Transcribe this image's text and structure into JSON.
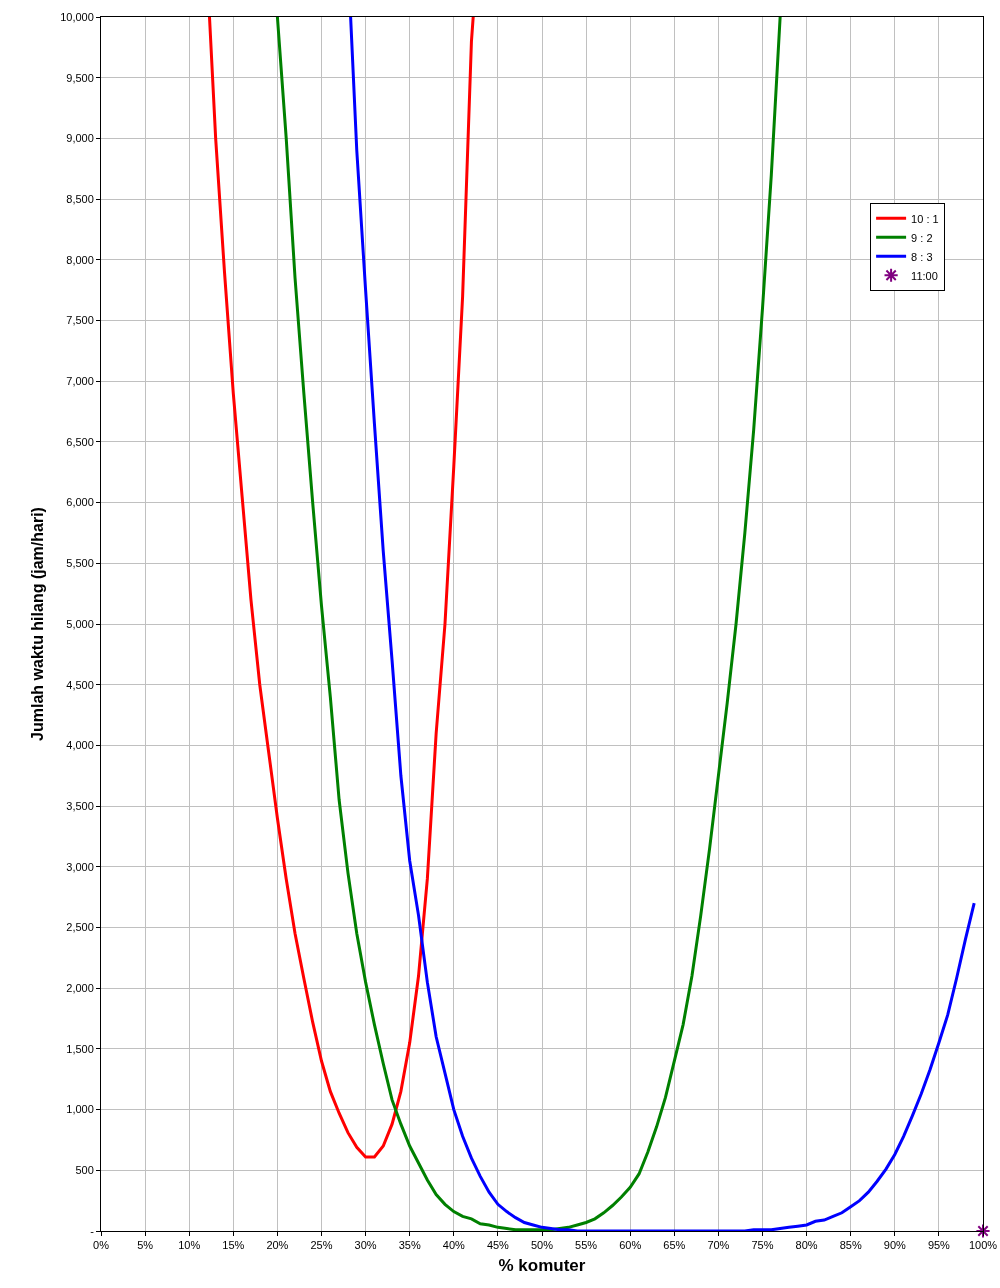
{
  "chart_data": {
    "type": "line",
    "xlabel": "% komuter",
    "ylabel": "Jumlah waktu hilang (jam/hari)",
    "xlim": [
      0,
      100
    ],
    "ylim": [
      0,
      10000
    ],
    "xticks": [
      {
        "value": 0,
        "label": "0%"
      },
      {
        "value": 5,
        "label": "5%"
      },
      {
        "value": 10,
        "label": "10%"
      },
      {
        "value": 15,
        "label": "15%"
      },
      {
        "value": 20,
        "label": "20%"
      },
      {
        "value": 25,
        "label": "25%"
      },
      {
        "value": 30,
        "label": "30%"
      },
      {
        "value": 35,
        "label": "35%"
      },
      {
        "value": 40,
        "label": "40%"
      },
      {
        "value": 45,
        "label": "45%"
      },
      {
        "value": 50,
        "label": "50%"
      },
      {
        "value": 55,
        "label": "55%"
      },
      {
        "value": 60,
        "label": "60%"
      },
      {
        "value": 65,
        "label": "65%"
      },
      {
        "value": 70,
        "label": "70%"
      },
      {
        "value": 75,
        "label": "75%"
      },
      {
        "value": 80,
        "label": "80%"
      },
      {
        "value": 85,
        "label": "85%"
      },
      {
        "value": 90,
        "label": "90%"
      },
      {
        "value": 95,
        "label": "95%"
      },
      {
        "value": 100,
        "label": "100%"
      }
    ],
    "yticks": [
      {
        "value": 0,
        "label": "-"
      },
      500,
      {
        "value": 1000,
        "label": "1,000"
      },
      {
        "value": 1500,
        "label": "1,500"
      },
      {
        "value": 2000,
        "label": "2,000"
      },
      {
        "value": 2500,
        "label": "2,500"
      },
      {
        "value": 3000,
        "label": "3,000"
      },
      {
        "value": 3500,
        "label": "3,500"
      },
      {
        "value": 4000,
        "label": "4,000"
      },
      {
        "value": 4500,
        "label": "4,500"
      },
      {
        "value": 5000,
        "label": "5,000"
      },
      {
        "value": 5500,
        "label": "5,500"
      },
      {
        "value": 6000,
        "label": "6,000"
      },
      {
        "value": 6500,
        "label": "6,500"
      },
      {
        "value": 7000,
        "label": "7,000"
      },
      {
        "value": 7500,
        "label": "7,500"
      },
      {
        "value": 8000,
        "label": "8,000"
      },
      {
        "value": 8500,
        "label": "8,500"
      },
      {
        "value": 9000,
        "label": "9,000"
      },
      {
        "value": 9500,
        "label": "9,500"
      },
      {
        "value": 10000,
        "label": "10,000"
      }
    ],
    "grid": true,
    "legend": "top right",
    "marker": "none",
    "line_style": "solid",
    "series": [
      {
        "name": "10 : 1",
        "color": "#ff0000",
        "x": [
          12.3,
          13,
          14,
          15,
          16,
          17,
          18,
          19,
          20,
          21,
          22,
          23,
          24,
          25,
          26,
          27,
          28,
          29,
          30,
          31,
          32,
          33,
          34,
          35,
          36,
          37,
          38,
          39,
          40,
          41,
          42,
          42.2
        ],
        "values": [
          10000,
          9000,
          7900,
          6900,
          6050,
          5200,
          4500,
          3950,
          3400,
          2900,
          2450,
          2080,
          1720,
          1400,
          1150,
          970,
          810,
          690,
          610,
          610,
          700,
          880,
          1150,
          1550,
          2100,
          2900,
          4100,
          5000,
          6300,
          7700,
          9800,
          10000
        ]
      },
      {
        "name": "9 : 2",
        "color": "#008000",
        "x": [
          20,
          21,
          22,
          23,
          24,
          25,
          26,
          27,
          28,
          29,
          30,
          31,
          32,
          33,
          34,
          35,
          36,
          37,
          38,
          39,
          40,
          41,
          42,
          43,
          44,
          45,
          46,
          47,
          48,
          49,
          50,
          51,
          52,
          53,
          54,
          55,
          56,
          57,
          58,
          59,
          60,
          61,
          62,
          63,
          64,
          65,
          66,
          67,
          68,
          69,
          70,
          71,
          72,
          73,
          74,
          75,
          76,
          77
        ],
        "values": [
          10000,
          9000,
          7850,
          6900,
          6000,
          5150,
          4400,
          3550,
          2950,
          2450,
          2050,
          1700,
          1380,
          1080,
          880,
          700,
          560,
          420,
          300,
          220,
          160,
          120,
          100,
          60,
          50,
          30,
          20,
          10,
          10,
          10,
          10,
          10,
          20,
          30,
          50,
          70,
          100,
          150,
          210,
          280,
          360,
          470,
          650,
          860,
          1100,
          1400,
          1700,
          2100,
          2600,
          3150,
          3750,
          4350,
          5000,
          5750,
          6600,
          7600,
          8700,
          10000
        ]
      },
      {
        "name": "8 : 3",
        "color": "#0000ff",
        "x": [
          28.3,
          29,
          30,
          31,
          32,
          33,
          34,
          35,
          36,
          37,
          38,
          39,
          40,
          41,
          42,
          43,
          44,
          45,
          46,
          47,
          48,
          49,
          50,
          51,
          52,
          53,
          54,
          55,
          56,
          57,
          58,
          59,
          60,
          61,
          62,
          63,
          64,
          65,
          66,
          67,
          68,
          69,
          70,
          71,
          72,
          73,
          74,
          75,
          76,
          77,
          78,
          79,
          80,
          81,
          82,
          83,
          84,
          85,
          86,
          87,
          88,
          89,
          90,
          91,
          92,
          93,
          94,
          95,
          96,
          97,
          98,
          99
        ],
        "values": [
          10000,
          8900,
          7750,
          6650,
          5600,
          4700,
          3750,
          3050,
          2600,
          2050,
          1600,
          1300,
          1000,
          780,
          600,
          450,
          320,
          220,
          160,
          110,
          70,
          50,
          30,
          20,
          10,
          10,
          0,
          0,
          0,
          0,
          0,
          0,
          0,
          0,
          0,
          0,
          0,
          0,
          0,
          0,
          0,
          0,
          0,
          0,
          0,
          0,
          10,
          10,
          10,
          20,
          30,
          40,
          50,
          80,
          90,
          120,
          150,
          200,
          250,
          320,
          410,
          510,
          630,
          780,
          950,
          1130,
          1330,
          1550,
          1780,
          2080,
          2400,
          2700
        ]
      },
      {
        "name": "11:00",
        "color": "#800080",
        "type": "scatter",
        "marker": "cross",
        "x": [
          100
        ],
        "values": [
          0
        ]
      }
    ]
  }
}
